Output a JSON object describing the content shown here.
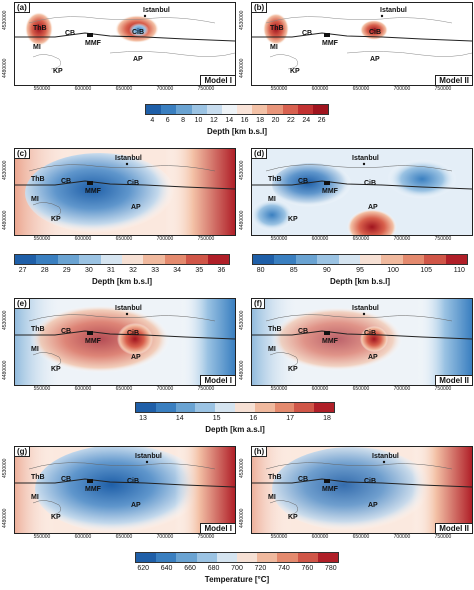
{
  "panels": [
    {
      "label": "(a)",
      "model": "Model I"
    },
    {
      "label": "(b)",
      "model": "Model II"
    },
    {
      "label": "(c)",
      "model": ""
    },
    {
      "label": "(d)",
      "model": ""
    },
    {
      "label": "(e)",
      "model": "Model I"
    },
    {
      "label": "(f)",
      "model": "Model II"
    },
    {
      "label": "(g)",
      "model": "Model I"
    },
    {
      "label": "(h)",
      "model": "Model II"
    }
  ],
  "map_labels": {
    "istanbul": "Istanbul",
    "thb": "ThB",
    "cb": "CB",
    "cib": "CiB",
    "mmf": "MMF",
    "mi": "MI",
    "kp": "KP",
    "ap": "AP"
  },
  "x_ticks": [
    "550000",
    "600000",
    "650000",
    "700000",
    "750000"
  ],
  "y_ticks": [
    "4480000",
    "4530000"
  ],
  "colorbars": [
    {
      "id": "ab",
      "ticks": [
        "4",
        "6",
        "8",
        "10",
        "12",
        "14",
        "16",
        "18",
        "20",
        "22",
        "24",
        "26"
      ],
      "title": "Depth [km b.s.l]",
      "colors": [
        "#1f5fa8",
        "#3a7fc0",
        "#6aa3d2",
        "#9bc3e3",
        "#c7dcee",
        "#eef3f7",
        "#f9e3d8",
        "#f3c1a6",
        "#e8957a",
        "#d86150",
        "#c23232",
        "#a0141e"
      ]
    },
    {
      "id": "c",
      "ticks": [
        "27",
        "28",
        "29",
        "30",
        "31",
        "32",
        "33",
        "34",
        "35",
        "36"
      ],
      "title": "Depth [km b.s.l]",
      "colors": [
        "#1f5fa8",
        "#3a7fc0",
        "#6aa3d2",
        "#9bc3e3",
        "#d5e4f0",
        "#f6e0d4",
        "#f0b99e",
        "#e48a6e",
        "#d05648",
        "#b01f28"
      ]
    },
    {
      "id": "d",
      "ticks": [
        "80",
        "85",
        "90",
        "95",
        "100",
        "105",
        "110"
      ],
      "title": "Depth [km b.s.l]",
      "colors": [
        "#1f5fa8",
        "#3a7fc0",
        "#6aa3d2",
        "#9bc3e3",
        "#d5e4f0",
        "#f6e0d4",
        "#f0b99e",
        "#e48a6e",
        "#d05648",
        "#b01f28"
      ]
    },
    {
      "id": "ef",
      "ticks": [
        "13",
        "14",
        "15",
        "16",
        "17",
        "18"
      ],
      "title": "Depth [km a.s.l]",
      "colors": [
        "#1f5fa8",
        "#3a7fc0",
        "#6aa3d2",
        "#9bc3e3",
        "#d5e4f0",
        "#f6e0d4",
        "#f0b99e",
        "#e48a6e",
        "#d05648",
        "#b01f28"
      ]
    },
    {
      "id": "gh",
      "ticks": [
        "620",
        "640",
        "660",
        "680",
        "700",
        "720",
        "740",
        "760",
        "780"
      ],
      "title": "Temperature [°C]",
      "colors": [
        "#1f5fa8",
        "#3a7fc0",
        "#6aa3d2",
        "#9bc3e3",
        "#d5e4f0",
        "#f6e0d4",
        "#f0b99e",
        "#e48a6e",
        "#d05648",
        "#b01f28"
      ]
    }
  ]
}
